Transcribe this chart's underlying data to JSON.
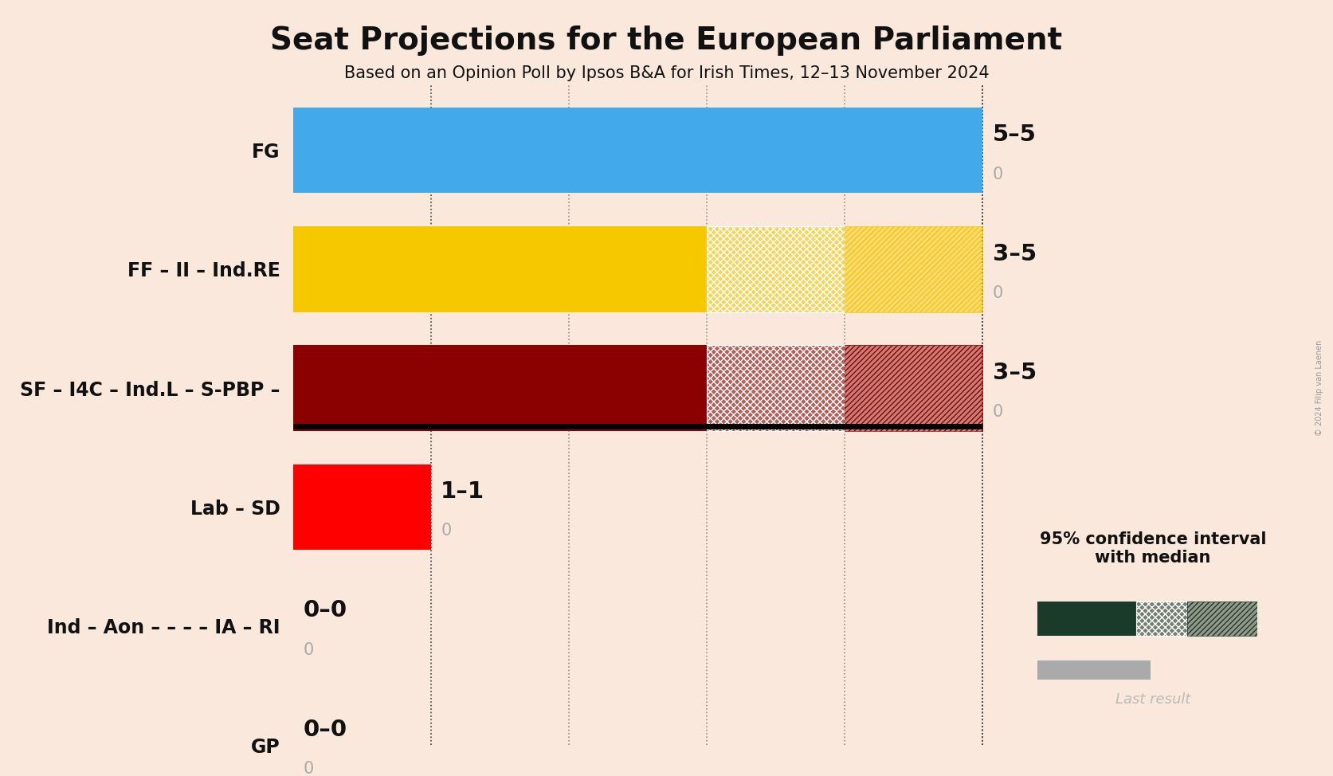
{
  "title": "Seat Projections for the European Parliament",
  "subtitle": "Based on an Opinion Poll by Ipsos B&A for Irish Times, 12–13 November 2024",
  "copyright": "© 2024 Filip van Laenen",
  "parties": [
    "FG",
    "FF – II – Ind.RE",
    "SF – I4C – Ind.L – S-PBP –",
    "Lab – SD",
    "Ind – Aon – – – – IA – RI",
    "GP"
  ],
  "median": [
    5,
    4,
    4,
    1,
    0,
    0
  ],
  "ci_low": [
    5,
    3,
    3,
    1,
    0,
    0
  ],
  "ci_high": [
    5,
    5,
    5,
    1,
    0,
    0
  ],
  "last_result": [
    0,
    0,
    0,
    0,
    0,
    0
  ],
  "colors": [
    "#42AAEB",
    "#F5C800",
    "#8B0000",
    "#FF0000",
    "#1E3A2A",
    "#2E7D32"
  ],
  "background_color": "#FAE8DC",
  "bar_height": 0.72,
  "xlim_max": 5.8,
  "label_range": [
    "5–5",
    "3–5",
    "3–5",
    "1–1",
    "0–0",
    "0–0"
  ],
  "label_last": [
    "0",
    "0",
    "0",
    "0",
    "0",
    "0"
  ],
  "legend_text1": "95% confidence interval",
  "legend_text2": "with median",
  "legend_last": "Last result",
  "legend_color": "#1A3A2A"
}
